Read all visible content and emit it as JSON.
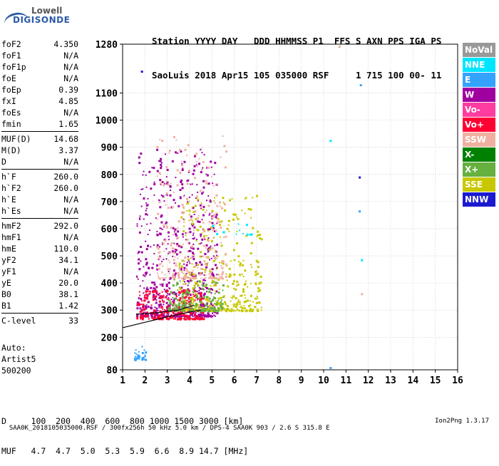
{
  "logo": {
    "line1": "Lowell",
    "line2": "DIGISONDE"
  },
  "header": {
    "line1": "Station YYYY DAY   DDD HHMMSS P1  FFS S AXN PPS IGA PS",
    "line2": "SaoLuis 2018 Apr15 105 035000 RSF     1 715 100 00- 11"
  },
  "params": [
    {
      "group": [
        [
          "foF2",
          "4.350"
        ],
        [
          "foF1",
          "N/A"
        ],
        [
          "foF1p",
          "N/A"
        ],
        [
          "foE",
          "N/A"
        ],
        [
          "foEp",
          "0.39"
        ],
        [
          "fxI",
          "4.85"
        ],
        [
          "foEs",
          "N/A"
        ],
        [
          "fmin",
          "1.65"
        ]
      ]
    },
    {
      "group": [
        [
          "MUF(D)",
          "14.68"
        ],
        [
          "M(D)",
          "3.37"
        ],
        [
          "D",
          "N/A"
        ]
      ]
    },
    {
      "group": [
        [
          "h`F",
          "260.0"
        ],
        [
          "h`F2",
          "260.0"
        ],
        [
          "h`E",
          "N/A"
        ],
        [
          "h`Es",
          "N/A"
        ]
      ]
    },
    {
      "group": [
        [
          "hmF2",
          "292.0"
        ],
        [
          "hmF1",
          "N/A"
        ],
        [
          "hmE",
          "110.0"
        ],
        [
          "yF2",
          "34.1"
        ],
        [
          "yF1",
          "N/A"
        ],
        [
          "yE",
          "20.0"
        ],
        [
          "B0",
          "38.1"
        ],
        [
          "B1",
          "1.42"
        ]
      ]
    },
    {
      "group": [
        [
          "C-level",
          "33"
        ]
      ]
    }
  ],
  "auto": {
    "l1": "Auto:",
    "l2": "Artist5",
    "l3": "500200"
  },
  "legend": [
    {
      "label": "NoVal",
      "color": "#999999"
    },
    {
      "label": "NNE",
      "color": "#00e5ff"
    },
    {
      "label": "E",
      "color": "#33a3ff"
    },
    {
      "label": "W",
      "color": "#a000a0"
    },
    {
      "label": "Vo-",
      "color": "#ff3ca0"
    },
    {
      "label": "Vo+",
      "color": "#ff0033"
    },
    {
      "label": "SSW",
      "color": "#f0b0a0"
    },
    {
      "label": "X-",
      "color": "#008000"
    },
    {
      "label": "X+",
      "color": "#66b040"
    },
    {
      "label": "SSE",
      "color": "#c8c800"
    },
    {
      "label": "NNW",
      "color": "#1a1ad0"
    }
  ],
  "dmuf": {
    "d_line": "D     100  200  400  600  800 1000 1500 3000 [km]",
    "muf_line": "MUF   4.7  4.7  5.0  5.3  5.9  6.6  8.9 14.7 [MHz]"
  },
  "footer": {
    "text": "SAA0K_2018105035000.RSF / 300fx256h 50 kHz 5.0 km / DPS-4 SAA0K 903 / 2.6 S 315.8 E",
    "version": "Ion2Png 1.3.17"
  },
  "chart_data": {
    "type": "scatter",
    "xlabel": "",
    "ylabel": "",
    "xlim": [
      1,
      16
    ],
    "ylim": [
      80,
      1280
    ],
    "x_ticks": [
      1,
      2,
      3,
      4,
      5,
      6,
      7,
      8,
      9,
      10,
      11,
      12,
      13,
      14,
      15,
      16
    ],
    "y_ticks": [
      80,
      200,
      300,
      400,
      500,
      600,
      700,
      800,
      900,
      1000,
      1100,
      1280
    ],
    "grid": true,
    "legend_position": "right",
    "profile_line": {
      "x": [
        1.0,
        2.0,
        3.0,
        4.0,
        4.5
      ],
      "y": [
        235,
        255,
        275,
        293,
        300
      ]
    },
    "trace_line": {
      "x": [
        1.6,
        2.5,
        3.5,
        4.2
      ],
      "y": [
        285,
        290,
        300,
        318
      ]
    },
    "clusters": [
      {
        "name": "W",
        "x_range": [
          1.6,
          5.2
        ],
        "y_range": [
          280,
          900
        ]
      },
      {
        "name": "Vo+",
        "x_range": [
          1.6,
          4.6
        ],
        "y_range": [
          270,
          380
        ]
      },
      {
        "name": "SSE",
        "x_range": [
          3.5,
          7.2
        ],
        "y_range": [
          300,
          720
        ]
      },
      {
        "name": "SSW",
        "x_range": [
          2.5,
          5.6
        ],
        "y_range": [
          420,
          960
        ]
      },
      {
        "name": "X+",
        "x_range": [
          3.0,
          5.5
        ],
        "y_range": [
          300,
          420
        ]
      },
      {
        "name": "E",
        "x_range": [
          1.5,
          2.0
        ],
        "y_range": [
          120,
          170
        ]
      },
      {
        "name": "NNE",
        "x_range": [
          5.0,
          6.8
        ],
        "y_range": [
          580,
          620
        ]
      }
    ],
    "points": [
      {
        "x": 1.85,
        "y": 1180,
        "s": "NNW"
      },
      {
        "x": 10.3,
        "y": 925,
        "s": "NNE"
      },
      {
        "x": 10.3,
        "y": 88,
        "s": "E"
      },
      {
        "x": 11.65,
        "y": 1130,
        "s": "E"
      },
      {
        "x": 11.6,
        "y": 790,
        "s": "NNW"
      },
      {
        "x": 11.6,
        "y": 665,
        "s": "E"
      },
      {
        "x": 11.7,
        "y": 485,
        "s": "NNE"
      },
      {
        "x": 11.7,
        "y": 360,
        "s": "SSW"
      },
      {
        "x": 10.7,
        "y": 1272,
        "s": "SSW"
      },
      {
        "x": 7.05,
        "y": 478,
        "s": "SSE"
      },
      {
        "x": 7.0,
        "y": 722,
        "s": "SSE"
      }
    ]
  }
}
